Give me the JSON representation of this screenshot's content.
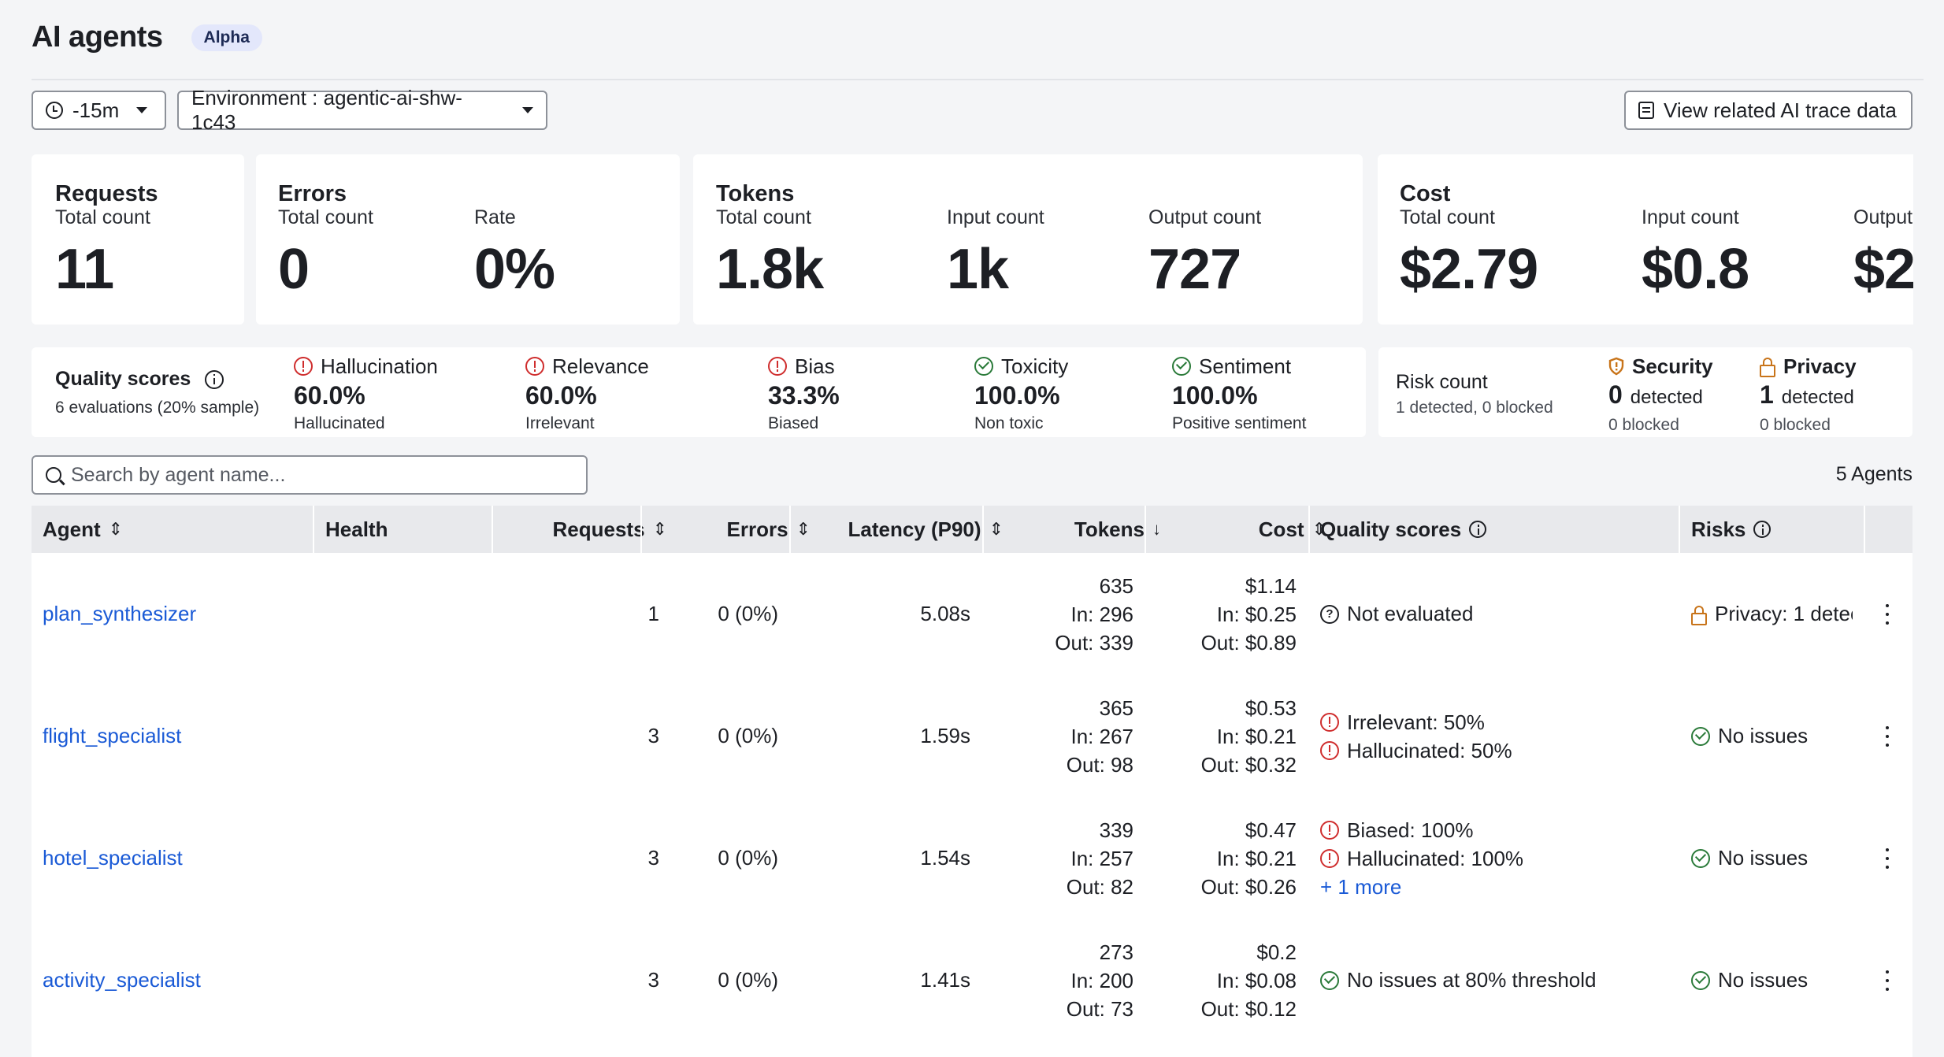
{
  "header": {
    "title": "AI agents",
    "badge": "Alpha"
  },
  "toolbar": {
    "time_range": "-15m",
    "environment_label": "Environment : agentic-ai-shw-1c43",
    "trace_button": "View related AI trace data"
  },
  "metrics": {
    "requests": {
      "title": "Requests",
      "total_label": "Total count",
      "total": "11"
    },
    "errors": {
      "title": "Errors",
      "total_label": "Total count",
      "total": "0",
      "rate_label": "Rate",
      "rate": "0%"
    },
    "tokens": {
      "title": "Tokens",
      "total_label": "Total count",
      "total": "1.8k",
      "input_label": "Input count",
      "input": "1k",
      "output_label": "Output count",
      "output": "727"
    },
    "cost": {
      "title": "Cost",
      "total_label": "Total count",
      "total": "$2.79",
      "input_label": "Input count",
      "input": "$0.8",
      "output_label": "Output",
      "output": "$2"
    }
  },
  "quality": {
    "title": "Quality scores",
    "subtitle": "6 evaluations (20% sample)",
    "items": [
      {
        "name": "Hallucination",
        "value": "60.0%",
        "sub": "Hallucinated",
        "status": "warn"
      },
      {
        "name": "Relevance",
        "value": "60.0%",
        "sub": "Irrelevant",
        "status": "warn"
      },
      {
        "name": "Bias",
        "value": "33.3%",
        "sub": "Biased",
        "status": "warn"
      },
      {
        "name": "Toxicity",
        "value": "100.0%",
        "sub": "Non toxic",
        "status": "ok"
      },
      {
        "name": "Sentiment",
        "value": "100.0%",
        "sub": "Positive sentiment",
        "status": "ok"
      }
    ]
  },
  "risk": {
    "title": "Risk count",
    "subtitle": "1 detected, 0 blocked",
    "security": {
      "name": "Security",
      "count": "0",
      "detected": "detected",
      "blocked": "0 blocked"
    },
    "privacy": {
      "name": "Privacy",
      "count": "1",
      "detected": "detected",
      "blocked": "0 blocked"
    }
  },
  "search": {
    "placeholder": "Search by agent name..."
  },
  "agent_count": "5 Agents",
  "table": {
    "columns": {
      "agent": "Agent",
      "health": "Health",
      "requests": "Requests",
      "errors": "Errors",
      "latency": "Latency (P90)",
      "tokens": "Tokens",
      "cost": "Cost",
      "quality": "Quality scores",
      "risks": "Risks"
    },
    "rows": [
      {
        "agent": "plan_synthesizer",
        "requests": "1",
        "errors": "0 (0%)",
        "latency": "5.08s",
        "tokens_total": "635",
        "tokens_in": "In: 296",
        "tokens_out": "Out: 339",
        "cost_total": "$1.14",
        "cost_in": "In: $0.25",
        "cost_out": "Out: $0.89",
        "quality": [
          "Not evaluated"
        ],
        "risk": "Privacy: 1 detec"
      },
      {
        "agent": "flight_specialist",
        "requests": "3",
        "errors": "0 (0%)",
        "latency": "1.59s",
        "tokens_total": "365",
        "tokens_in": "In: 267",
        "tokens_out": "Out: 98",
        "cost_total": "$0.53",
        "cost_in": "In: $0.21",
        "cost_out": "Out: $0.32",
        "quality": [
          "Irrelevant: 50%",
          "Hallucinated: 50%"
        ],
        "risk": "No issues"
      },
      {
        "agent": "hotel_specialist",
        "requests": "3",
        "errors": "0 (0%)",
        "latency": "1.54s",
        "tokens_total": "339",
        "tokens_in": "In: 257",
        "tokens_out": "Out: 82",
        "cost_total": "$0.47",
        "cost_in": "In: $0.21",
        "cost_out": "Out: $0.26",
        "quality": [
          "Biased: 100%",
          "Hallucinated: 100%"
        ],
        "quality_more": "+ 1 more",
        "risk": "No issues"
      },
      {
        "agent": "activity_specialist",
        "requests": "3",
        "errors": "0 (0%)",
        "latency": "1.41s",
        "tokens_total": "273",
        "tokens_in": "In: 200",
        "tokens_out": "Out: 73",
        "cost_total": "$0.2",
        "cost_in": "In: $0.08",
        "cost_out": "Out: $0.12",
        "quality": [
          "No issues at 80% threshold"
        ],
        "risk": "No issues"
      }
    ]
  },
  "colors": {
    "link": "#1a5ad6",
    "warn": "#cf2d2d",
    "ok": "#2a7a39",
    "privacy": "#c8741a",
    "badge_bg": "#e3e7fb"
  }
}
